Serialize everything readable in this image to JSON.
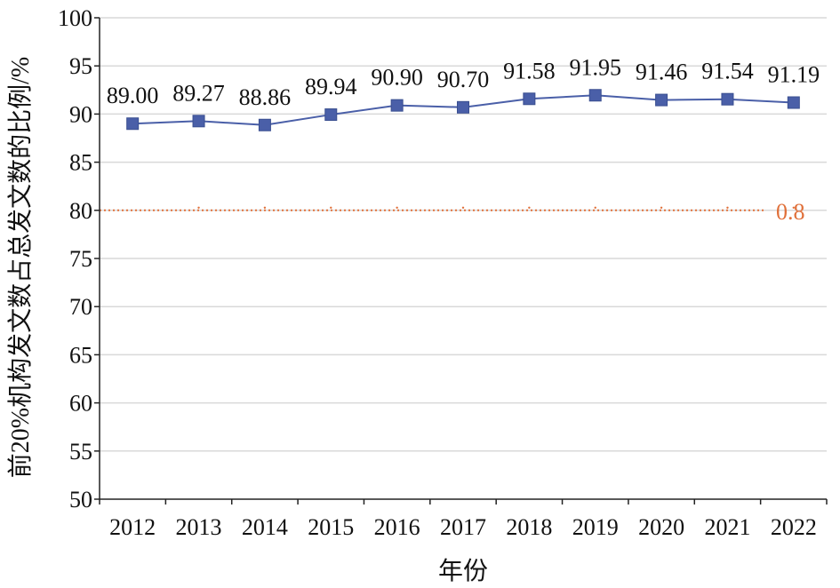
{
  "chart_data": {
    "type": "line",
    "title": "",
    "xlabel": "年份",
    "ylabel": "前20%机构发文数占总发文数的比例/%",
    "categories": [
      "2012",
      "2013",
      "2014",
      "2015",
      "2016",
      "2017",
      "2018",
      "2019",
      "2020",
      "2021",
      "2022"
    ],
    "series": [
      {
        "values": [
          89.0,
          89.27,
          88.86,
          89.94,
          90.9,
          90.7,
          91.58,
          91.95,
          91.46,
          91.54,
          91.19
        ],
        "data_labels": [
          "89.00",
          "89.27",
          "88.86",
          "89.94",
          "90.90",
          "90.70",
          "91.58",
          "91.95",
          "91.46",
          "91.54",
          "91.19"
        ],
        "color": "#4a5fa8",
        "marker": "square"
      }
    ],
    "ylim": [
      50,
      100
    ],
    "yticks": [
      50,
      55,
      60,
      65,
      70,
      75,
      80,
      85,
      90,
      95,
      100
    ],
    "grid": true,
    "grid_color": "#d9d9d9",
    "reference_line": {
      "value": 80,
      "label": "0.8",
      "style": "dotted",
      "color": "#e0703a"
    }
  }
}
